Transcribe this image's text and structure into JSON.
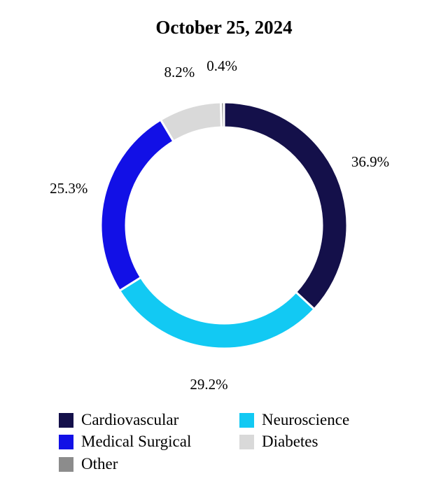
{
  "chart_data": {
    "type": "pie",
    "title": "October 25, 2024",
    "categories": [
      "Cardiovascular",
      "Neuroscience",
      "Medical Surgical",
      "Diabetes",
      "Other"
    ],
    "values": [
      36.9,
      29.2,
      25.3,
      8.2,
      0.4
    ],
    "data_labels": [
      "36.9%",
      "29.2%",
      "25.3%",
      "8.2%",
      "0.4%"
    ],
    "colors": [
      "#14104a",
      "#12c9f3",
      "#1210e6",
      "#d9d9d9",
      "#8c8c8c"
    ],
    "donut": true,
    "legend_position": "bottom"
  }
}
